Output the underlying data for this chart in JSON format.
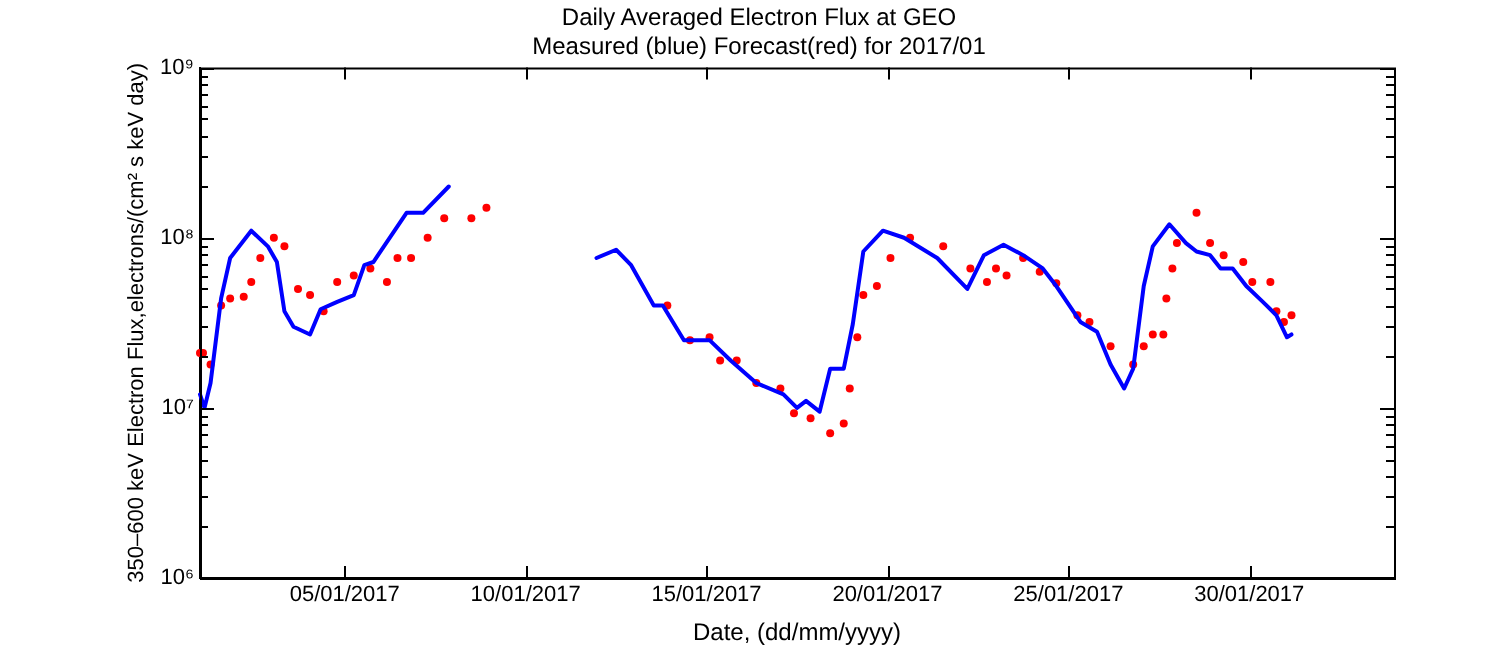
{
  "chart_data": {
    "type": "line",
    "title": "Daily Averaged Electron Flux at GEO",
    "subtitle": "Measured (blue) Forecast(red) for 2017/01",
    "xlabel": "Date, (dd/mm/yyyy)",
    "ylabel": "350–600 keV Electron Flux,electrons/(cm² s keV day)",
    "log": "y",
    "grid": false,
    "legend": false,
    "xlim": [
      "2017-01-01",
      "2017-02-03"
    ],
    "xticks": [
      {
        "value": "2017-01-05",
        "label": "05/01/2017"
      },
      {
        "value": "2017-01-10",
        "label": "10/01/2017"
      },
      {
        "value": "2017-01-15",
        "label": "15/01/2017"
      },
      {
        "value": "2017-01-20",
        "label": "20/01/2017"
      },
      {
        "value": "2017-01-25",
        "label": "25/01/2017"
      },
      {
        "value": "2017-01-30",
        "label": "30/01/2017"
      }
    ],
    "ylim": [
      1000000,
      1000000000
    ],
    "yticks": [
      {
        "value": 1000000,
        "label": "10⁶"
      },
      {
        "value": 2000000,
        "label": null
      },
      {
        "value": 3000000,
        "label": null
      },
      {
        "value": 4000000,
        "label": null
      },
      {
        "value": 5000000,
        "label": null
      },
      {
        "value": 6000000,
        "label": null
      },
      {
        "value": 7000000,
        "label": null
      },
      {
        "value": 8000000,
        "label": null
      },
      {
        "value": 9000000,
        "label": null
      },
      {
        "value": 10000000,
        "label": "10⁷"
      },
      {
        "value": 20000000,
        "label": null
      },
      {
        "value": 30000000,
        "label": null
      },
      {
        "value": 40000000,
        "label": null
      },
      {
        "value": 50000000,
        "label": null
      },
      {
        "value": 60000000,
        "label": null
      },
      {
        "value": 70000000,
        "label": null
      },
      {
        "value": 80000000,
        "label": null
      },
      {
        "value": 90000000,
        "label": null
      },
      {
        "value": 100000000,
        "label": "10⁸"
      },
      {
        "value": 200000000,
        "label": null
      },
      {
        "value": 300000000,
        "label": null
      },
      {
        "value": 400000000,
        "label": null
      },
      {
        "value": 500000000,
        "label": null
      },
      {
        "value": 600000000,
        "label": null
      },
      {
        "value": 700000000,
        "label": null
      },
      {
        "value": 800000000,
        "label": null
      },
      {
        "value": 900000000,
        "label": null
      },
      {
        "value": 1000000000,
        "label": "10⁹"
      }
    ],
    "series": [
      {
        "marker": "none",
        "color": "#0000ff",
        "x": [
          "2017-01-01T00:00",
          "2017-01-01T03:00",
          "2017-01-01T07:00",
          "2017-01-01T14:00",
          "2017-01-01T20:00",
          "2017-01-02T10:00",
          "2017-01-02T21:00",
          "2017-01-03T03:00",
          "2017-01-03T08:00",
          "2017-01-03T14:00",
          "2017-01-04T01:00",
          "2017-01-04T08:00",
          "2017-01-04T19:00",
          "2017-01-05T06:00",
          "2017-01-05T13:00",
          "2017-01-05T19:00",
          "2017-01-06T17:00",
          "2017-01-07T04:00",
          "2017-01-07T21:00",
          "2017-01-10T00:00",
          "2017-01-11T23:00",
          "2017-01-12T12:00",
          "2017-01-12T22:00",
          "2017-01-13T13:00",
          "2017-01-13T19:00",
          "2017-01-14T09:00",
          "2017-01-15T02:00",
          "2017-01-15T16:00",
          "2017-01-16T09:00",
          "2017-01-17T03:00",
          "2017-01-17T12:00",
          "2017-01-17T18:00",
          "2017-01-18T03:00",
          "2017-01-18T10:00",
          "2017-01-18T19:00",
          "2017-01-19T01:00",
          "2017-01-19T08:00",
          "2017-01-19T21:00",
          "2017-01-20T11:00",
          "2017-01-21T09:00",
          "2017-01-22T05:00",
          "2017-01-22T16:00",
          "2017-01-23T05:00",
          "2017-01-23T18:00",
          "2017-01-24T07:00",
          "2017-01-24T16:00",
          "2017-01-25T08:00",
          "2017-01-25T19:00",
          "2017-01-26T04:00",
          "2017-01-26T13:00",
          "2017-01-26T19:00",
          "2017-01-27T02:00",
          "2017-01-27T08:00",
          "2017-01-27T19:00",
          "2017-01-28T06:00",
          "2017-01-28T13:00",
          "2017-01-28T22:00",
          "2017-01-29T05:00",
          "2017-01-29T13:00",
          "2017-01-29T22:00",
          "2017-01-30T09:00",
          "2017-01-30T18:00",
          "2017-01-31T01:00",
          "2017-01-31T04:00"
        ],
        "values": [
          12000000,
          10000000,
          14000000,
          44000000,
          76000000,
          110000000,
          89000000,
          72000000,
          37000000,
          30000000,
          27000000,
          38000000,
          42000000,
          46000000,
          69000000,
          72000000,
          140000000,
          140000000,
          200000000,
          null,
          76000000,
          85000000,
          69000000,
          40000000,
          40000000,
          25000000,
          25000000,
          19000000,
          14000000,
          12000000,
          10000000,
          11000000,
          9500000,
          17000000,
          17000000,
          31000000,
          83000000,
          110000000,
          100000000,
          76000000,
          50000000,
          79000000,
          91000000,
          79000000,
          66000000,
          52000000,
          32000000,
          28000000,
          18000000,
          13000000,
          17000000,
          52000000,
          89000000,
          120000000,
          93000000,
          83000000,
          79000000,
          66000000,
          66000000,
          52000000,
          42000000,
          35000000,
          26000000,
          27000000
        ]
      },
      {
        "type": "scatter",
        "marker": "circle",
        "color": "#ff0000",
        "x": [
          "2017-01-01T00:00",
          "2017-01-01T02:00",
          "2017-01-01T07:00",
          "2017-01-01T14:00",
          "2017-01-01T20:00",
          "2017-01-02T05:00",
          "2017-01-02T10:00",
          "2017-01-02T16:00",
          "2017-01-03T01:00",
          "2017-01-03T08:00",
          "2017-01-03T17:00",
          "2017-01-04T01:00",
          "2017-01-04T10:00",
          "2017-01-04T19:00",
          "2017-01-05T06:00",
          "2017-01-05T17:00",
          "2017-01-06T04:00",
          "2017-01-06T11:00",
          "2017-01-06T20:00",
          "2017-01-07T07:00",
          "2017-01-07T18:00",
          "2017-01-08T12:00",
          "2017-01-08T22:00",
          "2017-01-13T22:00",
          "2017-01-14T13:00",
          "2017-01-15T02:00",
          "2017-01-15T09:00",
          "2017-01-15T20:00",
          "2017-01-16T09:00",
          "2017-01-17T01:00",
          "2017-01-17T10:00",
          "2017-01-17T21:00",
          "2017-01-18T10:00",
          "2017-01-18T19:00",
          "2017-01-18T23:00",
          "2017-01-19T04:00",
          "2017-01-19T08:00",
          "2017-01-19T17:00",
          "2017-01-20T02:00",
          "2017-01-20T15:00",
          "2017-01-21T13:00",
          "2017-01-22T07:00",
          "2017-01-22T18:00",
          "2017-01-23T00:00",
          "2017-01-23T07:00",
          "2017-01-23T18:00",
          "2017-01-24T05:00",
          "2017-01-24T16:00",
          "2017-01-25T06:00",
          "2017-01-25T14:00",
          "2017-01-26T04:00",
          "2017-01-26T19:00",
          "2017-01-27T02:00",
          "2017-01-27T08:00",
          "2017-01-27T15:00",
          "2017-01-27T17:00",
          "2017-01-27T21:00",
          "2017-01-28T00:00",
          "2017-01-28T13:00",
          "2017-01-28T22:00",
          "2017-01-29T07:00",
          "2017-01-29T20:00",
          "2017-01-30T02:00",
          "2017-01-30T14:00",
          "2017-01-30T18:00",
          "2017-01-30T23:00",
          "2017-01-31T04:00"
        ],
        "values": [
          21000000,
          21000000,
          18000000,
          40000000,
          44000000,
          45000000,
          55000000,
          76000000,
          100000000,
          89000000,
          50000000,
          46000000,
          37000000,
          55000000,
          60000000,
          66000000,
          55000000,
          76000000,
          76000000,
          100000000,
          130000000,
          130000000,
          150000000,
          40000000,
          25000000,
          26000000,
          19000000,
          19000000,
          14000000,
          13000000,
          9300000,
          8700000,
          7100000,
          8100000,
          13000000,
          26000000,
          46000000,
          52000000,
          76000000,
          100000000,
          89000000,
          66000000,
          55000000,
          66000000,
          60000000,
          76000000,
          63000000,
          54000000,
          35000000,
          32000000,
          23000000,
          18000000,
          23000000,
          27000000,
          27000000,
          44000000,
          66000000,
          93000000,
          140000000,
          93000000,
          79000000,
          72000000,
          55000000,
          55000000,
          37000000,
          32000000,
          35000000
        ]
      }
    ]
  }
}
